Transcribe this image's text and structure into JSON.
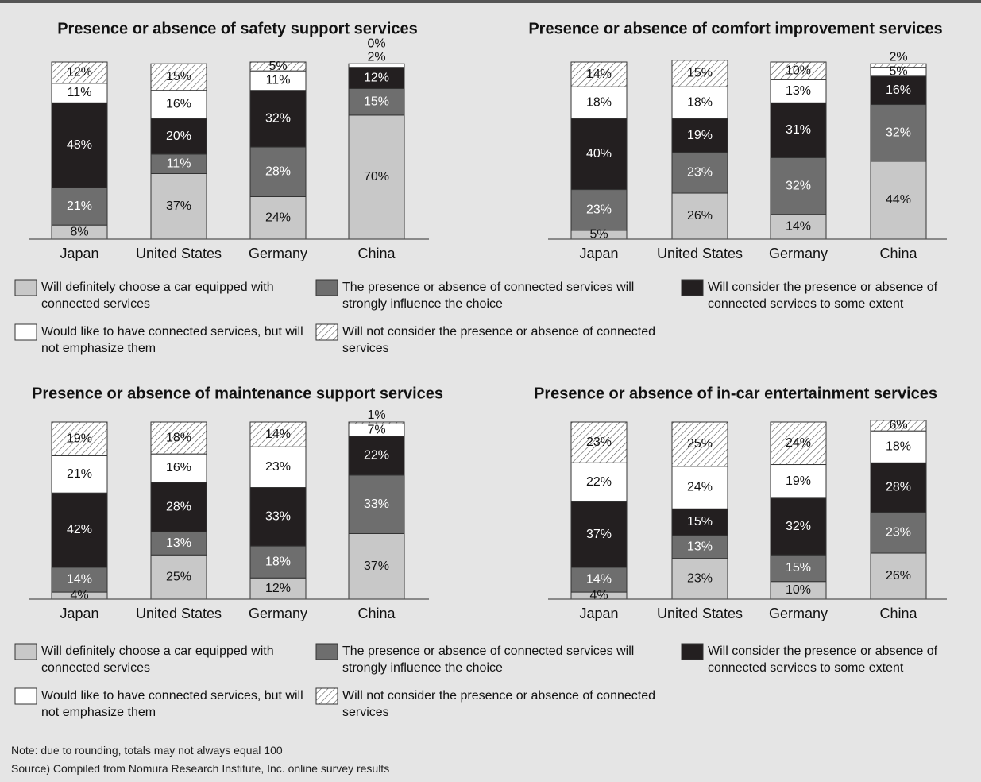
{
  "legends": [
    [
      {
        "name": "Will definitely choose a car equipped with connected services",
        "color": "#c8c8c8"
      },
      {
        "name": "The presence or absence of connected services will strongly influence the choice",
        "color": "#6e6e6e"
      },
      {
        "name": "Will consider the presence or absence of connected services to some extent",
        "color": "#231f20"
      },
      {
        "name": "Would like to have connected services, but will not emphasize them",
        "color": "#ffffff"
      },
      {
        "name": "Will not consider the presence or absence of connected services",
        "color": "#ffffff",
        "pattern": "hatch"
      }
    ],
    [
      {
        "name": "Will definitely choose a car equipped with connected services",
        "color": "#c8c8c8"
      },
      {
        "name": "The presence or absence of connected services will strongly influence the choice",
        "color": "#6e6e6e"
      },
      {
        "name": "Will consider the presence or absence of connected services to some extent",
        "color": "#231f20"
      },
      {
        "name": "Would like to have connected services, but will not emphasize them",
        "color": "#ffffff"
      },
      {
        "name": "Will not consider the presence or absence of connected services",
        "color": "#ffffff",
        "pattern": "hatch"
      }
    ]
  ],
  "chart_data": [
    {
      "type": "stacked_bar",
      "title": "Presence or absence of safety support services",
      "categories": [
        "Japan",
        "United States",
        "Germany",
        "China"
      ],
      "series": [
        {
          "values": [
            8,
            37,
            24,
            70
          ],
          "value_labels": [
            "8%",
            "37%",
            "24%",
            "70%"
          ]
        },
        {
          "values": [
            21,
            11,
            28,
            15
          ],
          "value_labels": [
            "21%",
            "11%",
            "28%",
            "15%"
          ]
        },
        {
          "values": [
            48,
            20,
            32,
            12
          ],
          "value_labels": [
            "48%",
            "20%",
            "32%",
            "12%"
          ]
        },
        {
          "values": [
            11,
            16,
            11,
            2
          ],
          "value_labels": [
            "11%",
            "16%",
            "11%",
            "2%"
          ]
        },
        {
          "values": [
            12,
            15,
            5,
            0
          ],
          "value_labels": [
            "12%",
            "15%",
            "5%",
            "0%"
          ]
        }
      ]
    },
    {
      "type": "stacked_bar",
      "title": "Presence or absence of comfort improvement services",
      "categories": [
        "Japan",
        "United States",
        "Germany",
        "China"
      ],
      "series": [
        {
          "values": [
            5,
            26,
            14,
            44
          ],
          "value_labels": [
            "5%",
            "26%",
            "14%",
            "44%"
          ]
        },
        {
          "values": [
            23,
            23,
            32,
            32
          ],
          "value_labels": [
            "23%",
            "23%",
            "32%",
            "32%"
          ]
        },
        {
          "values": [
            40,
            19,
            31,
            16
          ],
          "value_labels": [
            "40%",
            "19%",
            "31%",
            "16%"
          ]
        },
        {
          "values": [
            18,
            18,
            13,
            5
          ],
          "value_labels": [
            "18%",
            "18%",
            "13%",
            "5%"
          ]
        },
        {
          "values": [
            14,
            15,
            10,
            2
          ],
          "value_labels": [
            "14%",
            "15%",
            "10%",
            "2%"
          ]
        }
      ]
    },
    {
      "type": "stacked_bar",
      "title": "Presence or absence of maintenance support services",
      "categories": [
        "Japan",
        "United States",
        "Germany",
        "China"
      ],
      "series": [
        {
          "values": [
            4,
            25,
            12,
            37
          ],
          "value_labels": [
            "4%",
            "25%",
            "12%",
            "37%"
          ]
        },
        {
          "values": [
            14,
            13,
            18,
            33
          ],
          "value_labels": [
            "14%",
            "13%",
            "18%",
            "33%"
          ]
        },
        {
          "values": [
            42,
            28,
            33,
            22
          ],
          "value_labels": [
            "42%",
            "28%",
            "33%",
            "22%"
          ]
        },
        {
          "values": [
            21,
            16,
            23,
            7
          ],
          "value_labels": [
            "21%",
            "16%",
            "23%",
            "7%"
          ]
        },
        {
          "values": [
            19,
            18,
            14,
            1
          ],
          "value_labels": [
            "19%",
            "18%",
            "14%",
            "1%"
          ]
        }
      ]
    },
    {
      "type": "stacked_bar",
      "title": "Presence or absence of in-car entertainment services",
      "categories": [
        "Japan",
        "United States",
        "Germany",
        "China"
      ],
      "series": [
        {
          "values": [
            4,
            23,
            10,
            26
          ],
          "value_labels": [
            "4%",
            "23%",
            "10%",
            "26%"
          ]
        },
        {
          "values": [
            14,
            13,
            15,
            23
          ],
          "value_labels": [
            "14%",
            "13%",
            "15%",
            "23%"
          ]
        },
        {
          "values": [
            37,
            15,
            32,
            28
          ],
          "value_labels": [
            "37%",
            "15%",
            "32%",
            "28%"
          ]
        },
        {
          "values": [
            22,
            24,
            19,
            18
          ],
          "value_labels": [
            "22%",
            "24%",
            "19%",
            "18%"
          ]
        },
        {
          "values": [
            23,
            25,
            24,
            6
          ],
          "value_labels": [
            "23%",
            "25%",
            "24%",
            "6%"
          ]
        }
      ]
    }
  ],
  "note": "Note: due to rounding, totals may not always equal 100",
  "source": "Source) Compiled from Nomura Research Institute, Inc. online survey results"
}
